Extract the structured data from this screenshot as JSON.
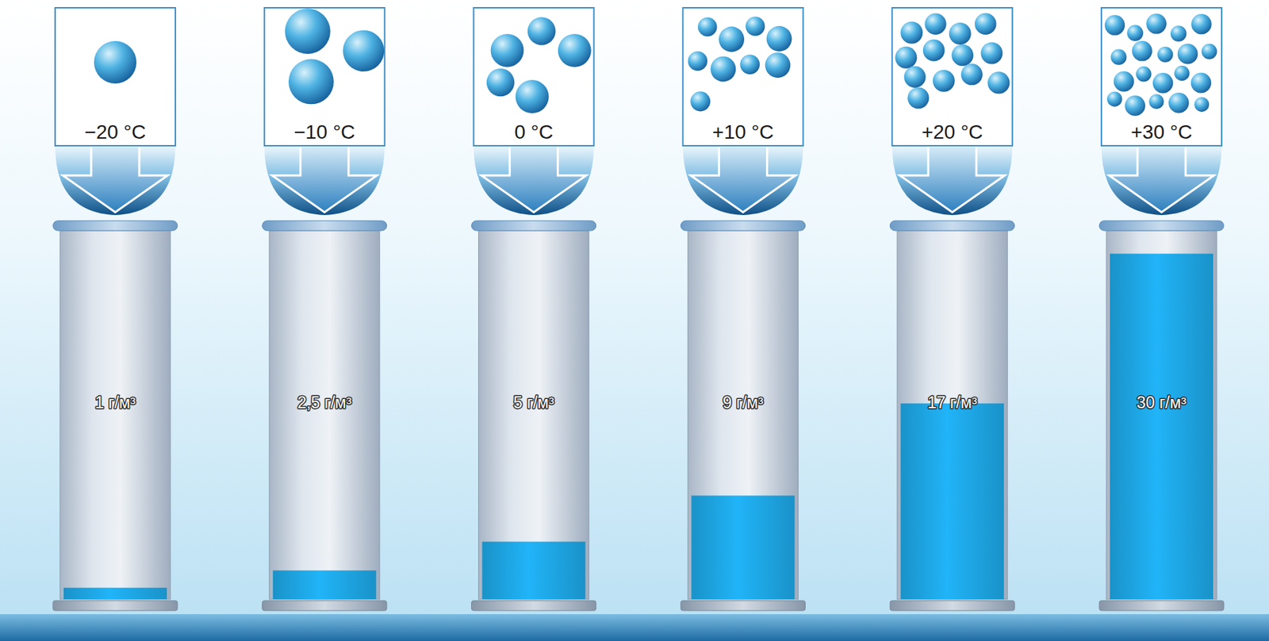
{
  "chart_data": {
    "type": "bar",
    "categories": [
      "−20 °C",
      "−10 °C",
      "0 °C",
      "+10 °C",
      "+20 °C",
      "+30 °C"
    ],
    "values": [
      1,
      2.5,
      5,
      9,
      17,
      30
    ],
    "value_labels": [
      "1 г/м³",
      "2,5 г/м³",
      "5 г/м³",
      "9 г/м³",
      "17 г/м³",
      "30 г/м³"
    ],
    "data_labels": true,
    "ylim": [
      0,
      32
    ],
    "color": "#1ea5e3"
  }
}
